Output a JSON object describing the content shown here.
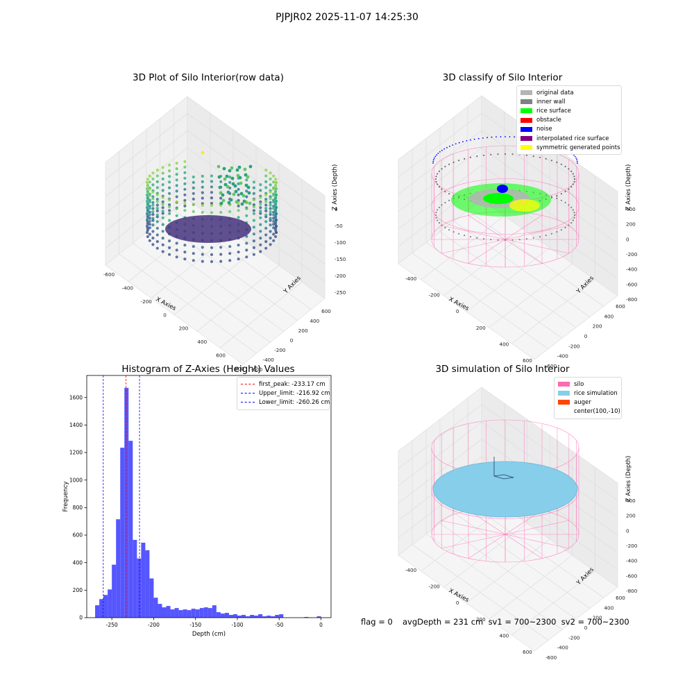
{
  "suptitle": "PJPJR02 2025-11-07 14:25:30",
  "panels": {
    "raw": {
      "title": "3D Plot of Silo Interior(row data)",
      "xlabel": "X Axies",
      "ylabel": "Y Axies",
      "zlabel": "Z Axies (Depth)",
      "xticks": [
        "-600",
        "-400",
        "-200",
        "0",
        "200",
        "400",
        "600",
        "800"
      ],
      "yticks": [
        "-600",
        "-400",
        "-200",
        "0",
        "200",
        "400",
        "600"
      ],
      "zticks": [
        "0",
        "-50",
        "-100",
        "-150",
        "-200",
        "-250"
      ]
    },
    "classify": {
      "title": "3D classify of Silo Interior",
      "xlabel": "X Axies",
      "ylabel": "Y Axies",
      "zlabel": "Z Axies (Depth)",
      "xticks": [
        "-400",
        "-200",
        "0",
        "200",
        "400",
        "600"
      ],
      "yticks": [
        "-600",
        "-400",
        "-200",
        "0",
        "200",
        "400",
        "600"
      ],
      "zticks": [
        "400",
        "200",
        "0",
        "-200",
        "-400",
        "-600",
        "-800"
      ],
      "legend": [
        {
          "label": "original data",
          "color": "#b4b4b4"
        },
        {
          "label": "inner wall",
          "color": "#808080"
        },
        {
          "label": "rice surface",
          "color": "#00ff00"
        },
        {
          "label": "obstacle",
          "color": "#ff0000"
        },
        {
          "label": "noise",
          "color": "#0000ff"
        },
        {
          "label": "interpolated rice surface",
          "color": "#800080"
        },
        {
          "label": "symmetric generated points",
          "color": "#ffff00"
        }
      ]
    },
    "simulation": {
      "title": "3D simulation of Silo Interior",
      "xlabel": "X Axies",
      "ylabel": "Y Axies",
      "zlabel": "Z Axies (Depth)",
      "xticks": [
        "-400",
        "-200",
        "0",
        "200",
        "400",
        "600"
      ],
      "yticks": [
        "-600",
        "-400",
        "-200",
        "0",
        "200",
        "400",
        "600"
      ],
      "zticks": [
        "400",
        "200",
        "0",
        "-200",
        "-400",
        "-600",
        "-800"
      ],
      "legend": [
        {
          "label": "silo",
          "color": "#ff69b4"
        },
        {
          "label": "rice simulation",
          "color": "#87ceeb"
        },
        {
          "label": "auger",
          "color": "#ff4500"
        },
        {
          "label": "center(100,-10)",
          "color": ""
        }
      ]
    }
  },
  "footer": {
    "flag": "flag = 0",
    "stats": "avgDepth = 231 cm  sv1 = 700~2300  sv2 = 700~2300"
  },
  "chart_data": [
    {
      "type": "bar",
      "title": "Histogram of Z-Axies (Height) Values",
      "xlabel": "Depth (cm)",
      "ylabel": "Frequency",
      "xlim": [
        -280,
        12
      ],
      "ylim": [
        0,
        1760
      ],
      "xticks": [
        -250,
        -200,
        -150,
        -100,
        -50,
        0
      ],
      "yticks": [
        0,
        200,
        400,
        600,
        800,
        1000,
        1200,
        1400,
        1600
      ],
      "bin_width": 5,
      "bin_starts": [
        -270,
        -265,
        -260,
        -255,
        -250,
        -245,
        -240,
        -235,
        -230,
        -225,
        -220,
        -215,
        -210,
        -205,
        -200,
        -195,
        -190,
        -185,
        -180,
        -175,
        -170,
        -165,
        -160,
        -155,
        -150,
        -145,
        -140,
        -135,
        -130,
        -125,
        -120,
        -115,
        -110,
        -105,
        -100,
        -95,
        -90,
        -85,
        -80,
        -75,
        -70,
        -65,
        -60,
        -55,
        -50,
        -20,
        -5
      ],
      "values": [
        90,
        135,
        165,
        205,
        385,
        715,
        1235,
        1670,
        1285,
        565,
        430,
        545,
        490,
        285,
        145,
        100,
        75,
        85,
        60,
        70,
        55,
        60,
        55,
        65,
        60,
        70,
        75,
        70,
        90,
        40,
        30,
        35,
        20,
        25,
        15,
        20,
        10,
        20,
        15,
        25,
        10,
        15,
        10,
        20,
        25,
        5,
        10
      ],
      "color": "#4d4dff",
      "lines": [
        {
          "name": "first_peak: -233.17 cm",
          "x": -233.17,
          "color": "#ff0000"
        },
        {
          "name": "Upper_limit: -216.92 cm",
          "x": -216.92,
          "color": "#0000ff"
        },
        {
          "name": "Lower_limit: -260.26 cm",
          "x": -260.26,
          "color": "#0000ff"
        }
      ]
    }
  ]
}
